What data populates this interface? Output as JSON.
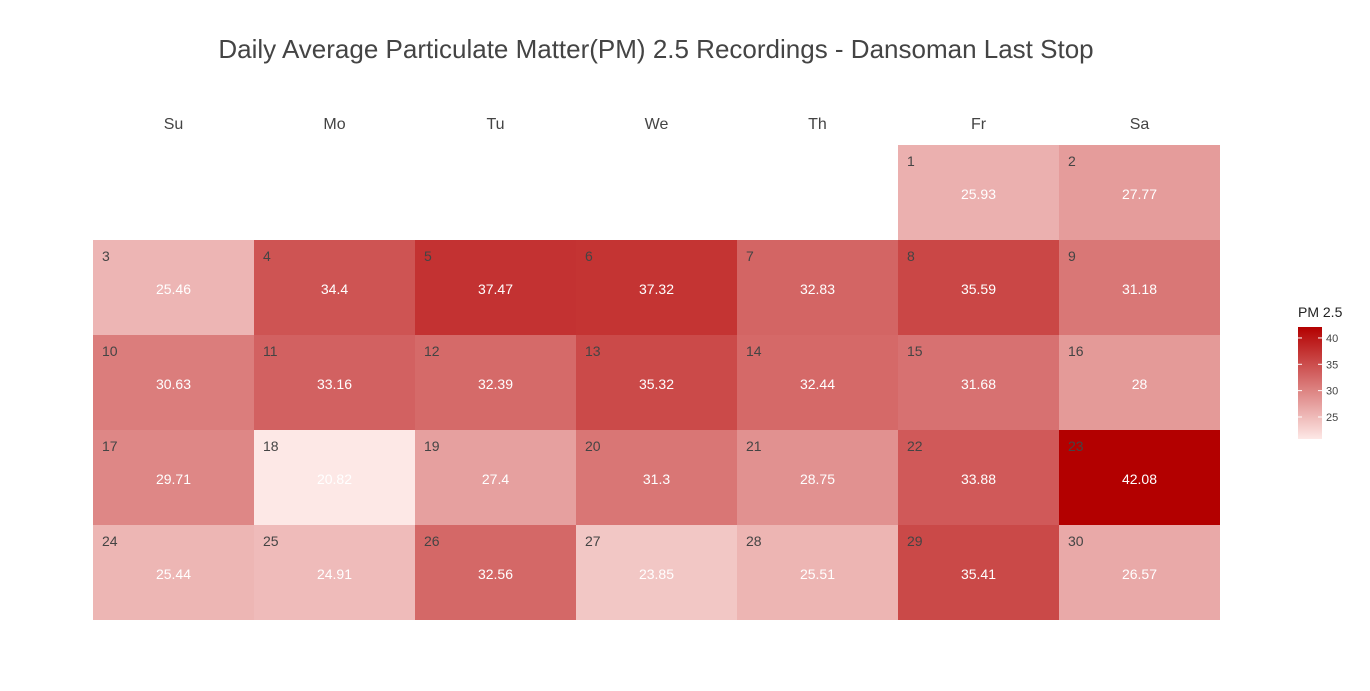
{
  "chart_data": {
    "type": "heatmap",
    "title": "Daily Average Particulate Matter(PM) 2.5 Recordings - Dansoman Last Stop",
    "weekdays": [
      "Su",
      "Mo",
      "Tu",
      "We",
      "Th",
      "Fr",
      "Sa"
    ],
    "first_weekday_index": 5,
    "days": [
      {
        "day": 1,
        "value": 25.93
      },
      {
        "day": 2,
        "value": 27.77
      },
      {
        "day": 3,
        "value": 25.46
      },
      {
        "day": 4,
        "value": 34.4
      },
      {
        "day": 5,
        "value": 37.47
      },
      {
        "day": 6,
        "value": 37.32
      },
      {
        "day": 7,
        "value": 32.83
      },
      {
        "day": 8,
        "value": 35.59
      },
      {
        "day": 9,
        "value": 31.18
      },
      {
        "day": 10,
        "value": 30.63
      },
      {
        "day": 11,
        "value": 33.16
      },
      {
        "day": 12,
        "value": 32.39
      },
      {
        "day": 13,
        "value": 35.32
      },
      {
        "day": 14,
        "value": 32.44
      },
      {
        "day": 15,
        "value": 31.68
      },
      {
        "day": 16,
        "value": 28
      },
      {
        "day": 17,
        "value": 29.71
      },
      {
        "day": 18,
        "value": 20.82
      },
      {
        "day": 19,
        "value": 27.4
      },
      {
        "day": 20,
        "value": 31.3
      },
      {
        "day": 21,
        "value": 28.75
      },
      {
        "day": 22,
        "value": 33.88
      },
      {
        "day": 23,
        "value": 42.08
      },
      {
        "day": 24,
        "value": 25.44
      },
      {
        "day": 25,
        "value": 24.91
      },
      {
        "day": 26,
        "value": 32.56
      },
      {
        "day": 27,
        "value": 23.85
      },
      {
        "day": 28,
        "value": 25.51
      },
      {
        "day": 29,
        "value": 35.41
      },
      {
        "day": 30,
        "value": 26.57
      }
    ],
    "legend": {
      "title": "PM 2.5",
      "ticks": [
        25,
        30,
        35,
        40
      ],
      "range": [
        20.82,
        42.08
      ]
    },
    "colors": {
      "low": "#fde8e6",
      "high": "#b30000"
    }
  }
}
